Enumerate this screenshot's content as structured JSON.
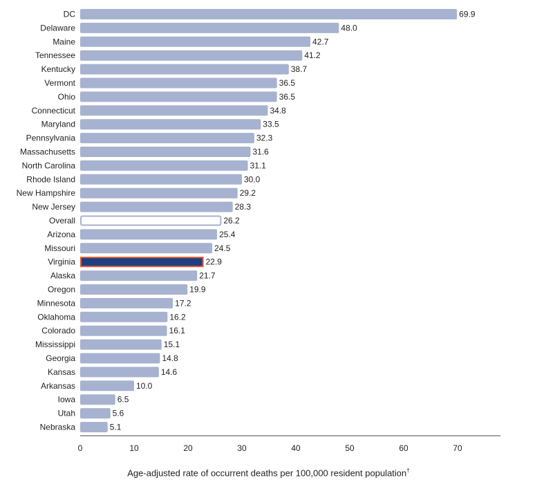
{
  "chart_data": {
    "type": "bar",
    "orientation": "horizontal",
    "categories": [
      "DC",
      "Delaware",
      "Maine",
      "Tennessee",
      "Kentucky",
      "Vermont",
      "Ohio",
      "Connecticut",
      "Maryland",
      "Pennsylvania",
      "Massachusetts",
      "North Carolina",
      "Rhode Island",
      "New Hampshire",
      "New Jersey",
      "Overall",
      "Arizona",
      "Missouri",
      "Virginia",
      "Alaska",
      "Oregon",
      "Minnesota",
      "Oklahoma",
      "Colorado",
      "Mississippi",
      "Georgia",
      "Kansas",
      "Arkansas",
      "Iowa",
      "Utah",
      "Nebraska"
    ],
    "values": [
      69.9,
      48.0,
      42.7,
      41.2,
      38.7,
      36.5,
      36.5,
      34.8,
      33.5,
      32.3,
      31.6,
      31.1,
      30.0,
      29.2,
      28.3,
      26.2,
      25.4,
      24.5,
      22.9,
      21.7,
      19.9,
      17.2,
      16.2,
      16.1,
      15.1,
      14.8,
      14.6,
      10.0,
      6.5,
      5.6,
      5.1
    ],
    "value_labels": [
      "69.9",
      "48.0",
      "42.7",
      "41.2",
      "38.7",
      "36.5",
      "36.5",
      "34.8",
      "33.5",
      "32.3",
      "31.6",
      "31.1",
      "30.0",
      "29.2",
      "28.3",
      "26.2",
      "25.4",
      "24.5",
      "22.9",
      "21.7",
      "19.9",
      "17.2",
      "16.2",
      "16.1",
      "15.1",
      "14.8",
      "14.6",
      "10.0",
      "6.5",
      "5.6",
      "5.1"
    ],
    "xlabel": "Age-adjusted rate of occurrent deaths per 100,000 resident population",
    "xlabel_footnote_mark": "†",
    "xlim": [
      0,
      77
    ],
    "xticks": [
      0,
      10,
      20,
      30,
      40,
      50,
      60,
      70
    ],
    "grid": false,
    "highlights": {
      "Overall": "outline",
      "Virginia": "highlighted"
    },
    "colors": {
      "bar": "#a6b2cf",
      "overall_fill": "#ffffff",
      "overall_stroke": "#a6b2cf",
      "virginia_fill": "#1f3f80",
      "virginia_stroke": "#e0582c",
      "axis": "#444444"
    }
  }
}
